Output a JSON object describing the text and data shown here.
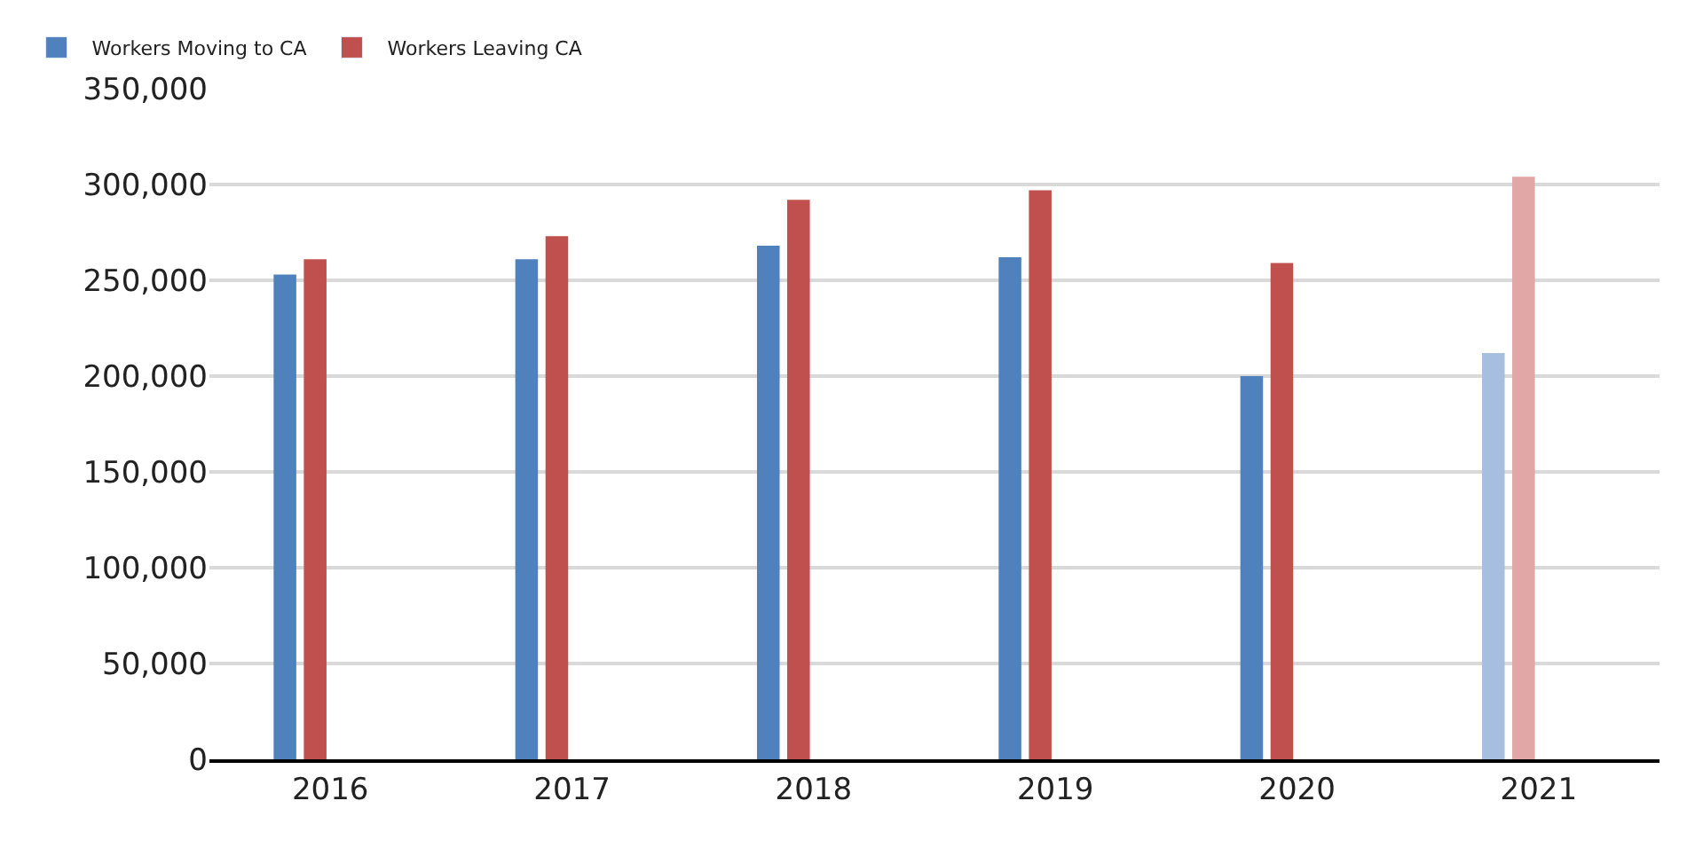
{
  "chart_data": {
    "type": "bar",
    "categories": [
      "2016",
      "2017",
      "2018",
      "2019",
      "2020",
      "2021"
    ],
    "series": [
      {
        "name": "Workers Moving to CA",
        "color": "#4f81bd",
        "colors": [
          "#4f81bd",
          "#4f81bd",
          "#4f81bd",
          "#4f81bd",
          "#4f81bd",
          "#a7bfdf"
        ],
        "values": [
          253000,
          261000,
          268000,
          262000,
          200000,
          212000
        ]
      },
      {
        "name": "Workers Leaving CA",
        "color": "#c0504d",
        "colors": [
          "#c0504d",
          "#c0504d",
          "#c0504d",
          "#c0504d",
          "#c0504d",
          "#e0a7a6"
        ],
        "values": [
          261000,
          273000,
          292000,
          297000,
          259000,
          304000
        ]
      }
    ],
    "ylim": [
      0,
      350000
    ],
    "yticks": [
      {
        "value": 0,
        "label": "0"
      },
      {
        "value": 50000,
        "label": "50,000"
      },
      {
        "value": 100000,
        "label": "100,000"
      },
      {
        "value": 150000,
        "label": "150,000"
      },
      {
        "value": 200000,
        "label": "200,000"
      },
      {
        "value": 250000,
        "label": "250,000"
      },
      {
        "value": 300000,
        "label": "300,000"
      },
      {
        "value": 350000,
        "label": "350,000"
      }
    ],
    "grid": "y",
    "legend": "top left"
  }
}
